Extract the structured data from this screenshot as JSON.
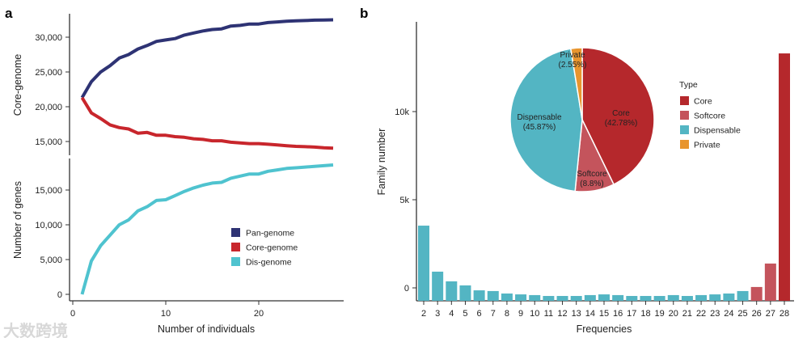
{
  "chart_data": [
    {
      "type": "line",
      "panel_label": "a",
      "xlabel": "Number of individuals",
      "xlim": [
        0,
        29
      ],
      "x_ticks": [
        "0",
        "10",
        "20"
      ],
      "x": [
        1,
        2,
        3,
        4,
        5,
        6,
        7,
        8,
        9,
        10,
        11,
        12,
        13,
        14,
        15,
        16,
        17,
        18,
        19,
        20,
        21,
        22,
        23,
        24,
        25,
        26,
        27,
        28
      ],
      "upper": {
        "ylabel": "Core-genome",
        "ylim": [
          13000,
          33500
        ],
        "y_ticks": [
          "15,000",
          "20,000",
          "25,000",
          "30,000"
        ],
        "y_tick_values": [
          15000,
          20000,
          25000,
          30000
        ]
      },
      "lower": {
        "ylabel": "Number of genes",
        "ylim": [
          -900,
          19500
        ],
        "y_ticks": [
          "0",
          "5,000",
          "10,000",
          "15,000"
        ],
        "y_tick_values": [
          0,
          5000,
          10000,
          15000
        ]
      },
      "series": [
        {
          "name": "Pan-genome",
          "panel": "upper",
          "color": "#2e3374",
          "values": [
            21300,
            23600,
            25000,
            25900,
            27000,
            27500,
            28300,
            28800,
            29400,
            29600,
            29800,
            30300,
            30600,
            30900,
            31100,
            31200,
            31600,
            31700,
            31900,
            31900,
            32100,
            32200,
            32300,
            32350,
            32400,
            32450,
            32480,
            32500
          ]
        },
        {
          "name": "Core-genome",
          "panel": "upper",
          "color": "#c8262c",
          "values": [
            21300,
            19100,
            18300,
            17400,
            17000,
            16800,
            16200,
            16300,
            15900,
            15900,
            15700,
            15600,
            15400,
            15300,
            15100,
            15100,
            14900,
            14800,
            14700,
            14700,
            14600,
            14500,
            14400,
            14300,
            14250,
            14200,
            14100,
            14050
          ]
        },
        {
          "name": "Dis-genome",
          "panel": "lower",
          "color": "#4fc3cf",
          "values": [
            0,
            4800,
            7000,
            8500,
            10000,
            10700,
            12000,
            12600,
            13500,
            13600,
            14200,
            14800,
            15300,
            15700,
            16000,
            16100,
            16700,
            17000,
            17300,
            17300,
            17700,
            17900,
            18100,
            18200,
            18300,
            18400,
            18500,
            18600
          ]
        }
      ],
      "legend": {
        "placement": "bottom-right",
        "items": [
          {
            "label": "Pan-genome",
            "color": "#2e3374"
          },
          {
            "label": "Core-genome",
            "color": "#c8262c"
          },
          {
            "label": "Dis-genome",
            "color": "#4fc3cf"
          }
        ]
      }
    },
    {
      "type": "bar",
      "panel_label": "b",
      "xlabel": "Frequencies",
      "ylabel": "Family number",
      "ylim": [
        -750,
        14500
      ],
      "y_ticks": [
        "0",
        "5k",
        "10k"
      ],
      "y_tick_values": [
        0,
        5000,
        10000
      ],
      "categories": [
        "2",
        "3",
        "4",
        "5",
        "6",
        "7",
        "8",
        "9",
        "10",
        "11",
        "12",
        "13",
        "14",
        "15",
        "16",
        "17",
        "18",
        "19",
        "20",
        "21",
        "22",
        "23",
        "24",
        "25",
        "26",
        "27",
        "28"
      ],
      "values": [
        3530,
        920,
        370,
        140,
        -140,
        -180,
        -320,
        -370,
        -410,
        -460,
        -460,
        -460,
        -410,
        -370,
        -410,
        -460,
        -460,
        -460,
        -410,
        -460,
        -410,
        -370,
        -320,
        -180,
        50,
        1380,
        13300
      ],
      "types": [
        "Dispensable",
        "Dispensable",
        "Dispensable",
        "Dispensable",
        "Dispensable",
        "Dispensable",
        "Dispensable",
        "Dispensable",
        "Dispensable",
        "Dispensable",
        "Dispensable",
        "Dispensable",
        "Dispensable",
        "Dispensable",
        "Dispensable",
        "Dispensable",
        "Dispensable",
        "Dispensable",
        "Dispensable",
        "Dispensable",
        "Dispensable",
        "Dispensable",
        "Dispensable",
        "Dispensable",
        "Softcore",
        "Softcore",
        "Core"
      ]
    },
    {
      "type": "pie",
      "inset_of": "b",
      "slices": [
        {
          "label": "Core",
          "pct_label": "(42.78%)",
          "value": 42.78,
          "color": "#b5282c"
        },
        {
          "label": "Softcore",
          "pct_label": "(8.8%)",
          "value": 8.8,
          "color": "#c4545c"
        },
        {
          "label": "Dispensable",
          "pct_label": "(45.87%)",
          "value": 45.87,
          "color": "#53b5c3"
        },
        {
          "label": "Private",
          "pct_label": "(2.55%)",
          "value": 2.55,
          "color": "#e8952e"
        }
      ],
      "legend": {
        "title": "Type",
        "placement": "right"
      }
    }
  ],
  "watermark": "大数跨境"
}
